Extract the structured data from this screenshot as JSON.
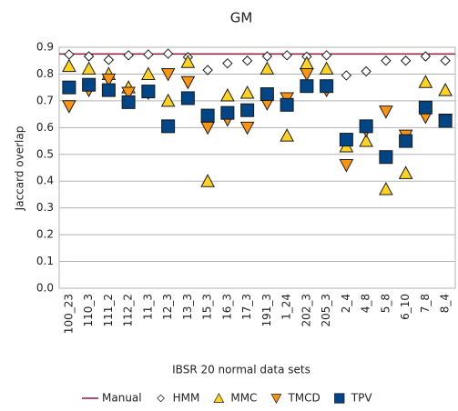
{
  "chart_data": {
    "type": "scatter",
    "title": "GM",
    "y_label": "Jaccard overlap",
    "x_label": "IBSR 20 normal data sets",
    "categories": [
      "100_23",
      "110_3",
      "111_2",
      "112_2",
      "11_3",
      "12_3",
      "13_3",
      "15_3",
      "16_3",
      "17_3",
      "191_3",
      "1_24",
      "202_3",
      "205_3",
      "2_4",
      "4_8",
      "5_8",
      "6_10",
      "7_8",
      "8_4"
    ],
    "ylim": [
      0,
      0.9
    ],
    "yticks": [
      {
        "value": 0,
        "label": "0.0"
      },
      0.1,
      0.2,
      0.3,
      0.4,
      0.5,
      0.6,
      0.7,
      0.8,
      0.9
    ],
    "grid": true,
    "legend": "bottom",
    "series": [
      {
        "name": "Manual",
        "color": "#8b1a3a",
        "marker": "line",
        "values": [
          0.875,
          0.875,
          0.875,
          0.875,
          0.875,
          0.875,
          0.875,
          0.875,
          0.875,
          0.875,
          0.875,
          0.875,
          0.875,
          0.875,
          0.875,
          0.875,
          0.875,
          0.875,
          0.875,
          0.875
        ]
      },
      {
        "name": "HMM",
        "color": "#ffffff",
        "marker": "diamond",
        "values": [
          0.873,
          0.866,
          0.853,
          0.87,
          0.873,
          0.876,
          0.863,
          0.815,
          0.84,
          0.85,
          0.866,
          0.87,
          0.865,
          0.87,
          0.795,
          0.81,
          0.85,
          0.85,
          0.866,
          0.85
        ]
      },
      {
        "name": "MMC",
        "color": "#ffd320",
        "marker": "triangle-up",
        "values": [
          0.83,
          0.82,
          0.8,
          0.75,
          0.8,
          0.7,
          0.845,
          0.4,
          0.72,
          0.73,
          0.82,
          0.57,
          0.84,
          0.82,
          0.53,
          0.55,
          0.37,
          0.43,
          0.77,
          0.74
        ]
      },
      {
        "name": "TMCD",
        "color": "#ff950e",
        "marker": "triangle-down",
        "values": [
          0.68,
          0.74,
          0.78,
          0.73,
          0.73,
          0.8,
          0.77,
          0.6,
          0.63,
          0.6,
          0.69,
          0.71,
          0.8,
          0.74,
          0.46,
          0.59,
          0.66,
          0.57,
          0.64,
          0.63
        ]
      },
      {
        "name": "TPV",
        "color": "#004586",
        "marker": "square",
        "values": [
          0.75,
          0.76,
          0.74,
          0.695,
          0.735,
          0.605,
          0.71,
          0.645,
          0.655,
          0.665,
          0.725,
          0.685,
          0.755,
          0.755,
          0.555,
          0.605,
          0.49,
          0.55,
          0.675,
          0.625
        ]
      }
    ]
  }
}
